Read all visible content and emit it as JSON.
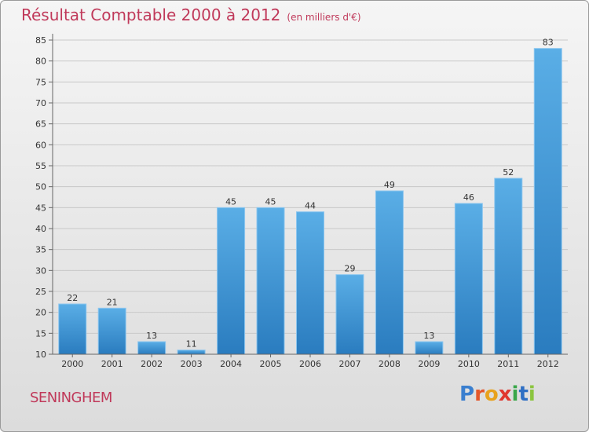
{
  "chart_data": {
    "type": "bar",
    "title": "Résultat Comptable 2000 à 2012",
    "subtitle": "(en milliers d'€)",
    "categories": [
      "2000",
      "2001",
      "2002",
      "2003",
      "2004",
      "2005",
      "2006",
      "2007",
      "2008",
      "2009",
      "2010",
      "2011",
      "2012"
    ],
    "values": [
      22,
      21,
      13,
      11,
      45,
      45,
      44,
      29,
      49,
      13,
      46,
      52,
      83
    ],
    "ylim": [
      10,
      85
    ],
    "yticks": [
      10,
      15,
      20,
      25,
      30,
      35,
      40,
      45,
      50,
      55,
      60,
      65,
      70,
      75,
      80,
      85
    ],
    "grid": true,
    "colors": {
      "bar_light": "#5aaee6",
      "bar_dark": "#2a7cbf",
      "title": "#c0395a"
    }
  },
  "commune": "SENINGHEM",
  "logo": {
    "text": "Proxiti",
    "letter_colors": [
      "#3a7fcf",
      "#e3562a",
      "#e8a21d",
      "#e0372f",
      "#3aa74a",
      "#2f6fc4",
      "#8bc53f"
    ]
  }
}
